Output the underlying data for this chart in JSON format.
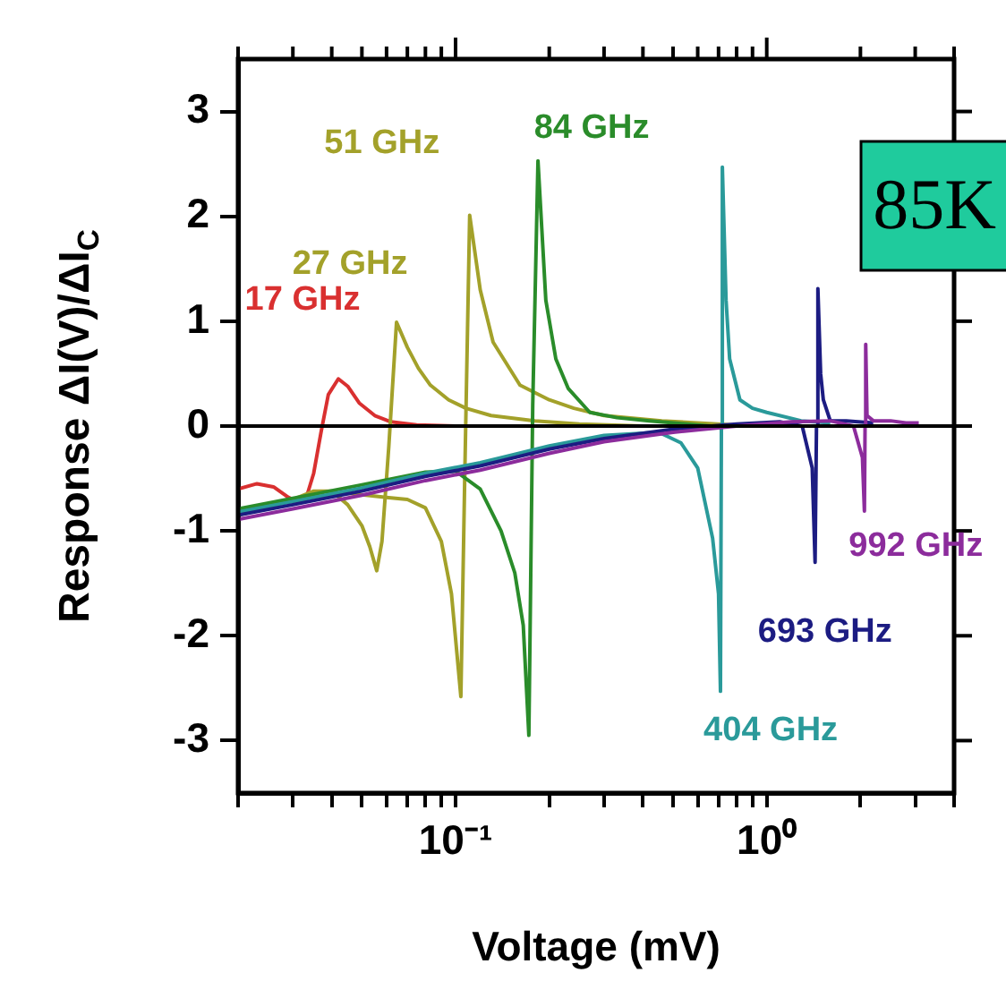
{
  "chart_data": {
    "type": "line",
    "xlabel": "Voltage (mV)",
    "ylabel": "Response ΔI(V)/ΔI$_{C}$",
    "log": "x",
    "grid": false,
    "legend": false,
    "marker": "none",
    "xlim": [
      0.02,
      4
    ],
    "ylim": [
      -3.5,
      3.5
    ],
    "xticks": [
      {
        "value": 0.02,
        "label": null
      },
      {
        "value": 0.03,
        "label": null
      },
      {
        "value": 0.04,
        "label": null
      },
      {
        "value": 0.05,
        "label": null
      },
      {
        "value": 0.06,
        "label": null
      },
      {
        "value": 0.07,
        "label": null
      },
      {
        "value": 0.08,
        "label": null
      },
      {
        "value": 0.09,
        "label": null
      },
      {
        "value": 0.1,
        "label": "10⁻¹"
      },
      {
        "value": 0.2,
        "label": null
      },
      {
        "value": 0.3,
        "label": null
      },
      {
        "value": 0.4,
        "label": null
      },
      {
        "value": 0.5,
        "label": null
      },
      {
        "value": 0.6,
        "label": null
      },
      {
        "value": 0.7,
        "label": null
      },
      {
        "value": 0.8,
        "label": null
      },
      {
        "value": 0.9,
        "label": null
      },
      {
        "value": 1,
        "label": "10⁰"
      },
      {
        "value": 2,
        "label": null
      },
      {
        "value": 3,
        "label": null
      },
      {
        "value": 4,
        "label": null
      }
    ],
    "yticks": [
      -3,
      -2,
      -1,
      0,
      1,
      2,
      3
    ],
    "ref_lines": [
      {
        "axis": "y",
        "value": 0,
        "color": "#000000"
      }
    ],
    "annotations": [
      "85K"
    ],
    "series": [
      {
        "name": "17 GHz",
        "color": "#d93030",
        "x": [
          0.02,
          0.023,
          0.026,
          0.029,
          0.031,
          0.033,
          0.035,
          0.037,
          0.039,
          0.042,
          0.045,
          0.049,
          0.055,
          0.062,
          0.075,
          0.1,
          0.15,
          0.25
        ],
        "values": [
          -0.6,
          -0.55,
          -0.58,
          -0.68,
          -0.72,
          -0.7,
          -0.45,
          -0.05,
          0.3,
          0.45,
          0.38,
          0.22,
          0.1,
          0.04,
          0.01,
          0,
          0,
          0
        ]
      },
      {
        "name": "27 GHz",
        "color": "#a3a12a",
        "x": [
          0.02,
          0.025,
          0.03,
          0.035,
          0.04,
          0.045,
          0.05,
          0.053,
          0.0558,
          0.058,
          0.061,
          0.0646,
          0.07,
          0.076,
          0.083,
          0.095,
          0.108,
          0.13,
          0.18,
          0.25,
          0.4,
          0.6,
          1.0
        ],
        "values": [
          -0.85,
          -0.78,
          -0.7,
          -0.62,
          -0.62,
          -0.75,
          -0.95,
          -1.15,
          -1.38,
          -1.1,
          -0.2,
          0.99,
          0.75,
          0.55,
          0.39,
          0.25,
          0.17,
          0.1,
          0.05,
          0.02,
          0,
          0,
          0
        ]
      },
      {
        "name": "51 GHz",
        "color": "#a3a12a",
        "x": [
          0.02,
          0.03,
          0.045,
          0.06,
          0.07,
          0.08,
          0.09,
          0.097,
          0.104,
          0.107,
          0.111,
          0.12,
          0.132,
          0.161,
          0.2,
          0.24,
          0.3,
          0.46,
          0.9
        ],
        "values": [
          -0.8,
          -0.7,
          -0.64,
          -0.68,
          -0.7,
          -0.78,
          -1.1,
          -1.6,
          -2.58,
          -0.5,
          2.01,
          1.3,
          0.8,
          0.39,
          0.25,
          0.17,
          0.1,
          0.05,
          0
        ]
      },
      {
        "name": "84 GHz",
        "color": "#2a8c2a",
        "x": [
          0.02,
          0.03,
          0.05,
          0.08,
          0.1,
          0.12,
          0.14,
          0.155,
          0.165,
          0.172,
          0.177,
          0.184,
          0.195,
          0.21,
          0.23,
          0.27,
          0.33,
          0.42,
          0.66,
          1.0
        ],
        "values": [
          -0.79,
          -0.69,
          -0.56,
          -0.44,
          -0.43,
          -0.6,
          -1.0,
          -1.4,
          -1.9,
          -2.95,
          0.2,
          2.53,
          1.2,
          0.64,
          0.36,
          0.13,
          0.08,
          0.05,
          0,
          0
        ]
      },
      {
        "name": "404 GHz",
        "color": "#2a9a9a",
        "x": [
          0.02,
          0.03,
          0.05,
          0.08,
          0.12,
          0.2,
          0.3,
          0.45,
          0.53,
          0.6,
          0.67,
          0.7,
          0.71,
          0.715,
          0.72,
          0.74,
          0.76,
          0.82,
          0.9,
          1.0,
          1.29,
          1.6
        ],
        "values": [
          -0.82,
          -0.72,
          -0.59,
          -0.45,
          -0.35,
          -0.19,
          -0.09,
          -0.06,
          -0.16,
          -0.4,
          -1.07,
          -1.6,
          -2.53,
          0,
          2.47,
          1.2,
          0.64,
          0.25,
          0.17,
          0.13,
          0.05,
          0.03
        ]
      },
      {
        "name": "693 GHz",
        "color": "#1c1c82",
        "x": [
          0.02,
          0.03,
          0.05,
          0.08,
          0.12,
          0.2,
          0.3,
          0.5,
          0.8,
          1.1,
          1.3,
          1.4,
          1.43,
          1.445,
          1.46,
          1.49,
          1.52,
          1.6,
          1.8,
          2.2
        ],
        "values": [
          -0.85,
          -0.75,
          -0.62,
          -0.48,
          -0.38,
          -0.22,
          -0.12,
          -0.03,
          0.02,
          0.04,
          0,
          -0.4,
          -1.3,
          0,
          1.31,
          0.5,
          0.25,
          0.05,
          0.05,
          0.03
        ]
      },
      {
        "name": "992 GHz",
        "color": "#8c2c9c",
        "x": [
          0.02,
          0.03,
          0.05,
          0.08,
          0.12,
          0.2,
          0.3,
          0.5,
          0.8,
          1.2,
          1.6,
          1.9,
          2.03,
          2.06,
          2.07,
          2.08,
          2.1,
          2.2,
          2.5,
          2.8,
          3.08
        ],
        "values": [
          -0.89,
          -0.79,
          -0.66,
          -0.52,
          -0.42,
          -0.26,
          -0.15,
          -0.06,
          0,
          0.04,
          0.05,
          0,
          -0.3,
          -0.81,
          0,
          0.78,
          0.1,
          0.05,
          0.05,
          0.03,
          0.03
        ]
      }
    ]
  }
}
